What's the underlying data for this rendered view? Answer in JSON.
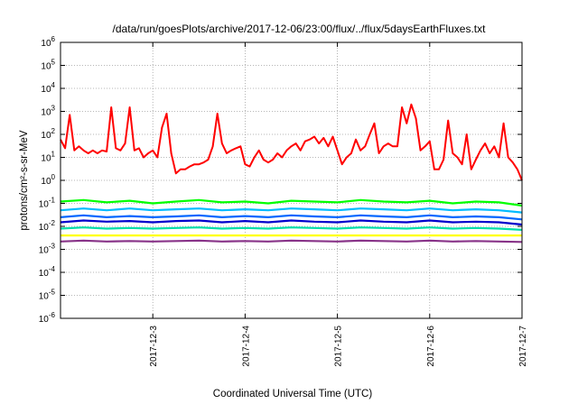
{
  "chart_data": {
    "type": "line",
    "title": "/data/run/goesPlots/archive/2017-12-06/23:00/flux/../flux/5daysEarthFluxes.txt",
    "xlabel": "Coordinated Universal Time (UTC)",
    "ylabel": "protons/cm²-s-sr-MeV",
    "xlim": [
      "2017-12-02",
      "2017-12-07"
    ],
    "ylim": [
      1e-06,
      1000000.0
    ],
    "yscale": "log",
    "grid": true,
    "x_ticks": [
      "2017-12-3",
      "2017-12-4",
      "2017-12-5",
      "2017-12-6",
      "2017-12-7"
    ],
    "y_ticks": [
      {
        "base": "10",
        "exp": "-6",
        "value": 1e-06
      },
      {
        "base": "10",
        "exp": "-5",
        "value": 1e-05
      },
      {
        "base": "10",
        "exp": "-4",
        "value": 0.0001
      },
      {
        "base": "10",
        "exp": "-3",
        "value": 0.001
      },
      {
        "base": "10",
        "exp": "-2",
        "value": 0.01
      },
      {
        "base": "10",
        "exp": "-1",
        "value": 0.1
      },
      {
        "base": "10",
        "exp": "0",
        "value": 1
      },
      {
        "base": "10",
        "exp": "1",
        "value": 10
      },
      {
        "base": "10",
        "exp": "2",
        "value": 100
      },
      {
        "base": "10",
        "exp": "3",
        "value": 1000
      },
      {
        "base": "10",
        "exp": "4",
        "value": 10000
      },
      {
        "base": "10",
        "exp": "5",
        "value": 100000
      },
      {
        "base": "10",
        "exp": "6",
        "value": 1000000
      }
    ],
    "series": [
      {
        "color": "#ff0000",
        "x": [
          "2017-12-02 00:00",
          "2017-12-02 01:12",
          "2017-12-02 02:24",
          "2017-12-02 03:36",
          "2017-12-02 04:48",
          "2017-12-02 06:00",
          "2017-12-02 07:12",
          "2017-12-02 08:24",
          "2017-12-02 09:36",
          "2017-12-02 10:48",
          "2017-12-02 12:00",
          "2017-12-02 13:12",
          "2017-12-02 14:24",
          "2017-12-02 15:36",
          "2017-12-02 16:48",
          "2017-12-02 18:00",
          "2017-12-02 19:12",
          "2017-12-02 20:24",
          "2017-12-02 21:36",
          "2017-12-02 22:48",
          "2017-12-03 00:00",
          "2017-12-03 01:12",
          "2017-12-03 02:24",
          "2017-12-03 03:36",
          "2017-12-03 04:48",
          "2017-12-03 06:00",
          "2017-12-03 07:12",
          "2017-12-03 08:24",
          "2017-12-03 09:36",
          "2017-12-03 10:48",
          "2017-12-03 12:00",
          "2017-12-03 13:12",
          "2017-12-03 14:24",
          "2017-12-03 15:36",
          "2017-12-03 16:48",
          "2017-12-03 18:00",
          "2017-12-03 19:12",
          "2017-12-03 20:24",
          "2017-12-03 21:36",
          "2017-12-03 22:48",
          "2017-12-04 00:00",
          "2017-12-04 01:12",
          "2017-12-04 02:24",
          "2017-12-04 03:36",
          "2017-12-04 04:48",
          "2017-12-04 06:00",
          "2017-12-04 07:12",
          "2017-12-04 08:24",
          "2017-12-04 09:36",
          "2017-12-04 10:48",
          "2017-12-04 12:00",
          "2017-12-04 13:12",
          "2017-12-04 14:24",
          "2017-12-04 15:36",
          "2017-12-04 16:48",
          "2017-12-04 18:00",
          "2017-12-04 19:12",
          "2017-12-04 20:24",
          "2017-12-04 21:36",
          "2017-12-04 22:48",
          "2017-12-05 00:00",
          "2017-12-05 01:12",
          "2017-12-05 02:24",
          "2017-12-05 03:36",
          "2017-12-05 04:48",
          "2017-12-05 06:00",
          "2017-12-05 07:12",
          "2017-12-05 08:24",
          "2017-12-05 09:36",
          "2017-12-05 10:48",
          "2017-12-05 12:00",
          "2017-12-05 13:12",
          "2017-12-05 14:24",
          "2017-12-05 15:36",
          "2017-12-05 16:48",
          "2017-12-05 18:00",
          "2017-12-05 19:12",
          "2017-12-05 20:24",
          "2017-12-05 21:36",
          "2017-12-05 22:48",
          "2017-12-06 00:00",
          "2017-12-06 01:12",
          "2017-12-06 02:24",
          "2017-12-06 03:36",
          "2017-12-06 04:48",
          "2017-12-06 06:00",
          "2017-12-06 07:12",
          "2017-12-06 08:24",
          "2017-12-06 09:36",
          "2017-12-06 10:48",
          "2017-12-06 12:00",
          "2017-12-06 13:12",
          "2017-12-06 14:24",
          "2017-12-06 15:36",
          "2017-12-06 16:48",
          "2017-12-06 18:00",
          "2017-12-06 19:12",
          "2017-12-06 20:24",
          "2017-12-06 21:36",
          "2017-12-06 22:48",
          "2017-12-07 00:00"
        ],
        "y": [
          60,
          25,
          700,
          20,
          30,
          20,
          15,
          20,
          15,
          20,
          18,
          1500,
          25,
          20,
          40,
          1500,
          20,
          25,
          10,
          15,
          20,
          10,
          200,
          800,
          15,
          2,
          3,
          3,
          4,
          5,
          5,
          6,
          8,
          30,
          800,
          40,
          15,
          20,
          25,
          30,
          5,
          4,
          10,
          20,
          8,
          6,
          8,
          15,
          10,
          20,
          30,
          40,
          20,
          50,
          60,
          80,
          40,
          70,
          30,
          80,
          20,
          5,
          10,
          15,
          60,
          20,
          30,
          100,
          300,
          15,
          30,
          40,
          30,
          30,
          1500,
          300,
          2000,
          500,
          20,
          30,
          50,
          3,
          3,
          8,
          400,
          15,
          10,
          5,
          100,
          3,
          8,
          20,
          40,
          15,
          30,
          10,
          300,
          10,
          6,
          3,
          1
        ]
      },
      {
        "color": "#00ff00",
        "x": [
          "2017-12-02 00:00",
          "2017-12-02 06:00",
          "2017-12-02 12:00",
          "2017-12-02 18:00",
          "2017-12-03 00:00",
          "2017-12-03 06:00",
          "2017-12-03 12:00",
          "2017-12-03 18:00",
          "2017-12-04 00:00",
          "2017-12-04 06:00",
          "2017-12-04 12:00",
          "2017-12-04 18:00",
          "2017-12-05 00:00",
          "2017-12-05 06:00",
          "2017-12-05 12:00",
          "2017-12-05 18:00",
          "2017-12-06 00:00",
          "2017-12-06 06:00",
          "2017-12-06 12:00",
          "2017-12-06 18:00",
          "2017-12-07 00:00"
        ],
        "y": [
          0.12,
          0.14,
          0.11,
          0.13,
          0.1,
          0.12,
          0.14,
          0.11,
          0.12,
          0.1,
          0.13,
          0.12,
          0.11,
          0.14,
          0.12,
          0.11,
          0.13,
          0.1,
          0.12,
          0.11,
          0.08
        ]
      },
      {
        "color": "#00bbff",
        "x": [
          "2017-12-02 00:00",
          "2017-12-02 06:00",
          "2017-12-02 12:00",
          "2017-12-02 18:00",
          "2017-12-03 00:00",
          "2017-12-03 06:00",
          "2017-12-03 12:00",
          "2017-12-03 18:00",
          "2017-12-04 00:00",
          "2017-12-04 06:00",
          "2017-12-04 12:00",
          "2017-12-04 18:00",
          "2017-12-05 00:00",
          "2017-12-05 06:00",
          "2017-12-05 12:00",
          "2017-12-05 18:00",
          "2017-12-06 00:00",
          "2017-12-06 06:00",
          "2017-12-06 12:00",
          "2017-12-06 18:00",
          "2017-12-07 00:00"
        ],
        "y": [
          0.05,
          0.06,
          0.05,
          0.06,
          0.05,
          0.055,
          0.06,
          0.05,
          0.055,
          0.05,
          0.06,
          0.055,
          0.05,
          0.06,
          0.055,
          0.05,
          0.06,
          0.05,
          0.055,
          0.05,
          0.04
        ]
      },
      {
        "color": "#0066ff",
        "x": [
          "2017-12-02 00:00",
          "2017-12-02 06:00",
          "2017-12-02 12:00",
          "2017-12-02 18:00",
          "2017-12-03 00:00",
          "2017-12-03 06:00",
          "2017-12-03 12:00",
          "2017-12-03 18:00",
          "2017-12-04 00:00",
          "2017-12-04 06:00",
          "2017-12-04 12:00",
          "2017-12-04 18:00",
          "2017-12-05 00:00",
          "2017-12-05 06:00",
          "2017-12-05 12:00",
          "2017-12-05 18:00",
          "2017-12-06 00:00",
          "2017-12-06 06:00",
          "2017-12-06 12:00",
          "2017-12-06 18:00",
          "2017-12-07 00:00"
        ],
        "y": [
          0.025,
          0.03,
          0.025,
          0.028,
          0.025,
          0.027,
          0.03,
          0.025,
          0.028,
          0.025,
          0.03,
          0.027,
          0.025,
          0.03,
          0.027,
          0.025,
          0.03,
          0.025,
          0.027,
          0.025,
          0.02
        ]
      },
      {
        "color": "#0000cc",
        "x": [
          "2017-12-02 00:00",
          "2017-12-02 06:00",
          "2017-12-02 12:00",
          "2017-12-02 18:00",
          "2017-12-03 00:00",
          "2017-12-03 06:00",
          "2017-12-03 12:00",
          "2017-12-03 18:00",
          "2017-12-04 00:00",
          "2017-12-04 06:00",
          "2017-12-04 12:00",
          "2017-12-04 18:00",
          "2017-12-05 00:00",
          "2017-12-05 06:00",
          "2017-12-05 12:00",
          "2017-12-05 18:00",
          "2017-12-06 00:00",
          "2017-12-06 06:00",
          "2017-12-06 12:00",
          "2017-12-06 18:00",
          "2017-12-07 00:00"
        ],
        "y": [
          0.015,
          0.018,
          0.016,
          0.017,
          0.015,
          0.017,
          0.018,
          0.015,
          0.017,
          0.015,
          0.018,
          0.016,
          0.015,
          0.018,
          0.016,
          0.015,
          0.018,
          0.015,
          0.016,
          0.015,
          0.012
        ]
      },
      {
        "color": "#00ddaa",
        "x": [
          "2017-12-02 00:00",
          "2017-12-02 06:00",
          "2017-12-02 12:00",
          "2017-12-02 18:00",
          "2017-12-03 00:00",
          "2017-12-03 06:00",
          "2017-12-03 12:00",
          "2017-12-03 18:00",
          "2017-12-04 00:00",
          "2017-12-04 06:00",
          "2017-12-04 12:00",
          "2017-12-04 18:00",
          "2017-12-05 00:00",
          "2017-12-05 06:00",
          "2017-12-05 12:00",
          "2017-12-05 18:00",
          "2017-12-06 00:00",
          "2017-12-06 06:00",
          "2017-12-06 12:00",
          "2017-12-06 18:00",
          "2017-12-07 00:00"
        ],
        "y": [
          0.008,
          0.009,
          0.008,
          0.0085,
          0.008,
          0.0085,
          0.009,
          0.008,
          0.0085,
          0.008,
          0.009,
          0.0085,
          0.008,
          0.009,
          0.0085,
          0.008,
          0.009,
          0.008,
          0.0085,
          0.008,
          0.007
        ]
      },
      {
        "color": "#ffff00",
        "x": [
          "2017-12-02 00:00",
          "2017-12-02 12:00",
          "2017-12-03 00:00",
          "2017-12-03 12:00",
          "2017-12-04 00:00",
          "2017-12-04 12:00",
          "2017-12-05 00:00",
          "2017-12-05 12:00",
          "2017-12-06 00:00",
          "2017-12-06 12:00",
          "2017-12-07 00:00"
        ],
        "y": [
          0.004,
          0.004,
          0.004,
          0.004,
          0.004,
          0.004,
          0.004,
          0.004,
          0.004,
          0.004,
          0.004
        ]
      },
      {
        "color": "#883388",
        "x": [
          "2017-12-02 00:00",
          "2017-12-02 06:00",
          "2017-12-02 12:00",
          "2017-12-02 18:00",
          "2017-12-03 00:00",
          "2017-12-03 06:00",
          "2017-12-03 12:00",
          "2017-12-03 18:00",
          "2017-12-04 00:00",
          "2017-12-04 06:00",
          "2017-12-04 12:00",
          "2017-12-04 18:00",
          "2017-12-05 00:00",
          "2017-12-05 06:00",
          "2017-12-05 12:00",
          "2017-12-05 18:00",
          "2017-12-06 00:00",
          "2017-12-06 06:00",
          "2017-12-06 12:00",
          "2017-12-06 18:00",
          "2017-12-07 00:00"
        ],
        "y": [
          0.0022,
          0.0024,
          0.0022,
          0.0023,
          0.0022,
          0.0023,
          0.0024,
          0.0022,
          0.0023,
          0.0022,
          0.0024,
          0.0023,
          0.0022,
          0.0024,
          0.0023,
          0.0022,
          0.0024,
          0.0022,
          0.0023,
          0.0022,
          0.0021
        ]
      }
    ]
  }
}
